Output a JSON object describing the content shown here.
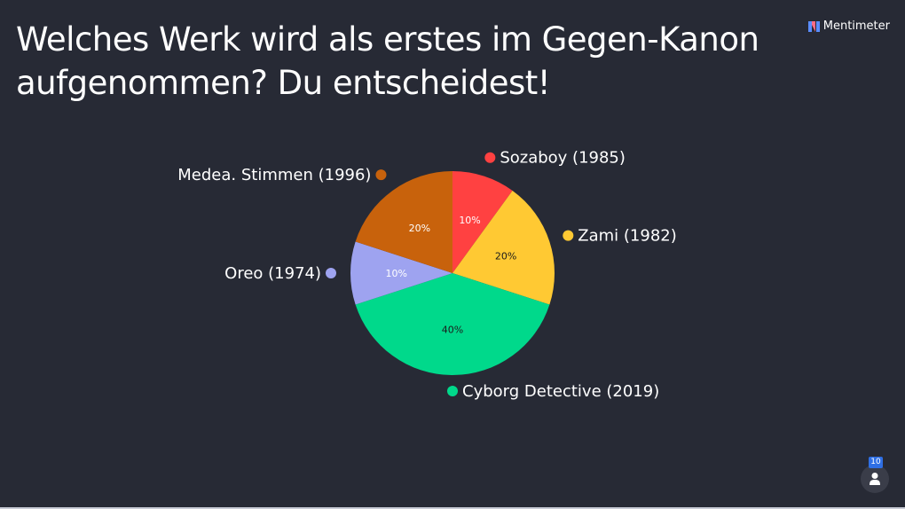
{
  "question": "Welches Werk wird als erstes im Gegen-Kanon aufgenommen? Du entscheidest!",
  "brand": {
    "name": "Mentimeter",
    "icon": "mentimeter-logo-icon"
  },
  "participants": {
    "count": "10",
    "icon": "person-icon"
  },
  "chart_data": {
    "type": "pie",
    "title": "",
    "slices": [
      {
        "label": "Sozaboy (1985)",
        "value": 10,
        "percent_label": "10%",
        "color": "#ff4141",
        "text_color": "#ffffff"
      },
      {
        "label": "Zami (1982)",
        "value": 20,
        "percent_label": "20%",
        "color": "#ffc933",
        "text_color": "#1b1b1b"
      },
      {
        "label": "Cyborg Detective (2019)",
        "value": 40,
        "percent_label": "40%",
        "color": "#00d98b",
        "text_color": "#1b1b1b"
      },
      {
        "label": "Oreo (1974)",
        "value": 10,
        "percent_label": "10%",
        "color": "#9ea3f0",
        "text_color": "#ffffff"
      },
      {
        "label": "Medea. Stimmen (1996)",
        "value": 20,
        "percent_label": "20%",
        "color": "#c8620c",
        "text_color": "#ffffff"
      }
    ]
  }
}
